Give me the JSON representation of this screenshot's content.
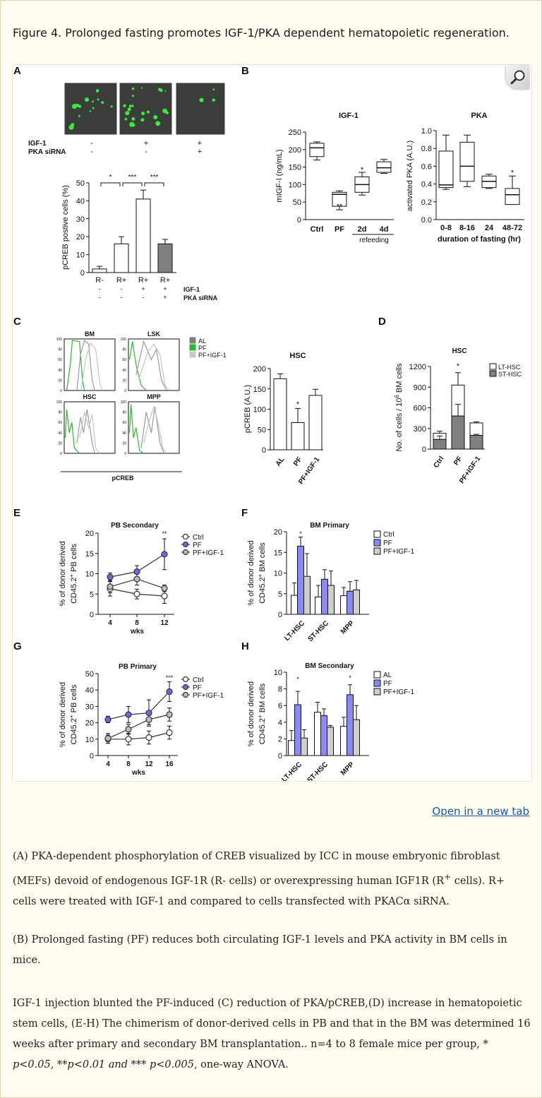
{
  "title": "Figure 4. Prolonged fasting promotes IGF-1/PKA dependent hematopoietic regeneration.",
  "open_link": "Open in a new tab",
  "zoom_icon": "magnifier-icon",
  "panel_letters": {
    "A": "A",
    "B": "B",
    "C": "C",
    "D": "D",
    "E": "E",
    "F": "F",
    "G": "G",
    "H": "H"
  },
  "panelA": {
    "micro_labels": {
      "igf1": "IGF-1",
      "pka": "PKA siRNA"
    },
    "micro_igf1": [
      "-",
      "+",
      "+"
    ],
    "micro_pka": [
      "-",
      "-",
      "+"
    ],
    "ylabel": "pCREB postive cells (%)",
    "yticks": [
      "0",
      "10",
      "20",
      "30",
      "40",
      "50"
    ],
    "categories": [
      "R-",
      "R+",
      "R+",
      "R+"
    ],
    "row_igf1": [
      "-",
      "-",
      "+",
      "+"
    ],
    "row_pka": [
      "-",
      "-",
      "-",
      "+"
    ],
    "row_label_igf1": "IGF-1",
    "row_label_pka": "PKA siRNA",
    "sig": [
      "*",
      "***",
      "***"
    ]
  },
  "panelB": {
    "igf_title": "IGF-1",
    "igf_ylabel": "mIGF-I (ng/mL)",
    "igf_yticks": [
      "0",
      "50",
      "100",
      "150",
      "200",
      "250"
    ],
    "igf_categories": [
      "Ctrl",
      "PF",
      "2d",
      "4d"
    ],
    "igf_sig": [
      "**",
      "*"
    ],
    "refeeding": "refeeding",
    "pka_title": "PKA",
    "pka_ylabel": "activated PKA (A.U.)",
    "pka_yticks": [
      "0.0",
      "0.2",
      "0.4",
      "0.6",
      "0.8",
      "1.0"
    ],
    "pka_categories": [
      "0-8",
      "8-16",
      "24",
      "48-72"
    ],
    "pka_sig": "*",
    "pka_xlabel": "duration of fasting (hr)"
  },
  "panelC": {
    "hist_titles": [
      "BM",
      "LSK",
      "HSC",
      "MPP"
    ],
    "hist_yticks": [
      "0",
      "20",
      "40",
      "60",
      "80",
      "100"
    ],
    "legend": [
      "AL",
      "PF",
      "PF+IGF-1"
    ],
    "hist_xlabel": "pCREB",
    "bar_title": "HSC",
    "bar_ylabel": "pCREB (A.U.)",
    "bar_yticks": [
      "0",
      "50",
      "100",
      "150",
      "200"
    ],
    "bar_categories": [
      "AL",
      "PF",
      "PF+IGF-1"
    ],
    "bar_sig": "*"
  },
  "panelD": {
    "title": "HSC",
    "ylabel_main": "No. of cells / 10",
    "ylabel_sup": "6",
    "ylabel_tail": " BM cells",
    "yticks": [
      "0",
      "300",
      "600",
      "900",
      "1200"
    ],
    "categories": [
      "Ctrl",
      "PF",
      "PF+IGF-1"
    ],
    "legend": [
      "LT-HSC",
      "ST-HSC"
    ],
    "sig": "*"
  },
  "panelE": {
    "title": "PB  Secondary",
    "ylabel1": "% of donor derived",
    "ylabel2": "CD45.2",
    "ylabel2_sup": "+",
    "ylabel2_tail": " PB cells",
    "yticks": [
      "0",
      "5",
      "10",
      "15",
      "20"
    ],
    "xticks": [
      "4",
      "8",
      "12"
    ],
    "xlabel": "wks",
    "legend": [
      "Ctrl",
      "PF",
      "PF+IGF-1"
    ],
    "sig": "**"
  },
  "panelF": {
    "title": "BM Primary",
    "ylabel1": "% of donor derived",
    "ylabel2": "CD45.2",
    "ylabel2_sup": "+",
    "ylabel2_tail": " BM cells",
    "yticks": [
      "0",
      "5",
      "10",
      "15",
      "20"
    ],
    "categories": [
      "LT-HSC",
      "ST-HSC",
      "MPP"
    ],
    "legend": [
      "Ctrl",
      "PF",
      "PF+IGF-1"
    ],
    "sig": "*"
  },
  "panelG": {
    "title": "PB  Primary",
    "ylabel1": "% of donor derived",
    "ylabel2": "CD45.2",
    "ylabel2_sup": "+",
    "ylabel2_tail": " PB cells",
    "yticks": [
      "0",
      "10",
      "20",
      "30",
      "40",
      "50"
    ],
    "xticks": [
      "4",
      "8",
      "12",
      "16"
    ],
    "xlabel": "wks",
    "legend": [
      "Ctrl",
      "PF",
      "PF+IGF-1"
    ],
    "sig": "***"
  },
  "panelH": {
    "title": "BM Secondary",
    "ylabel1": "% of donor derived",
    "ylabel2": "CD45.2",
    "ylabel2_sup": "+",
    "ylabel2_tail": " BM cells",
    "yticks": [
      "0",
      "2",
      "4",
      "6",
      "8",
      "10"
    ],
    "categories": [
      "LT-HSC",
      "ST-HSC",
      "MPP"
    ],
    "legend": [
      "AL",
      "PF",
      "PF+IGF-1"
    ],
    "sig": [
      "*",
      "*"
    ]
  },
  "caption": {
    "p1a": "(A) PKA-dependent phosphorylation of CREB visualized by ICC in mouse embryonic fibroblast (MEFs) devoid of endogenous IGF-1R (R- cells) or overexpressing human IGF1R (R",
    "p1sup": "+",
    "p1b": " cells). R+ cells were treated with IGF-1 and compared to cells transfected with PKACα siRNA.",
    "p2": "(B) Prolonged fasting (PF) reduces both circulating IGF-1 levels and PKA activity in BM cells in mice.",
    "p3a": "IGF-1 injection blunted the PF-induced (C) reduction of PKA/pCREB,(D) increase in hematopoietic stem cells, (E-H) The chimerism of donor-derived cells in PB and that in the BM was determined 16 weeks after primary and secondary BM transplantation.. n=4 to 8 female mice per group, ",
    "p3b": "* p<0.05, **p<0.01 and *** p<0.005",
    "p3c": ", one-way ANOVA."
  },
  "chart_data": [
    {
      "panel": "A",
      "type": "bar",
      "title": "",
      "ylabel": "pCREB postive cells (%)",
      "ylim": [
        0,
        50
      ],
      "categories": [
        "R-",
        "R+",
        "R+ +IGF-1",
        "R+ +IGF-1 +PKA siRNA"
      ],
      "values": [
        2,
        16,
        41,
        16
      ],
      "errors": [
        1.5,
        4,
        5,
        2.5
      ]
    },
    {
      "panel": "B",
      "type": "box",
      "title": "IGF-1",
      "ylabel": "mIGF-I (ng/mL)",
      "ylim": [
        0,
        250
      ],
      "categories": [
        "Ctrl",
        "PF",
        "2d",
        "4d"
      ],
      "boxes": [
        {
          "min": 170,
          "q1": 180,
          "median": 205,
          "q3": 218,
          "max": 222
        },
        {
          "min": 28,
          "q1": 38,
          "median": 72,
          "q3": 78,
          "max": 82
        },
        {
          "min": 70,
          "q1": 78,
          "median": 100,
          "q3": 122,
          "max": 135
        },
        {
          "min": 132,
          "q1": 135,
          "median": 148,
          "q3": 165,
          "max": 172
        }
      ]
    },
    {
      "panel": "B",
      "type": "box",
      "title": "PKA",
      "ylabel": "activated PKA (A.U.)",
      "xlabel": "duration of fasting (hr)",
      "ylim": [
        0,
        1
      ],
      "categories": [
        "0-8",
        "8-16",
        "24",
        "48-72"
      ],
      "boxes": [
        {
          "min": 0.34,
          "q1": 0.36,
          "median": 0.39,
          "q3": 0.77,
          "max": 0.95
        },
        {
          "min": 0.37,
          "q1": 0.43,
          "median": 0.6,
          "q3": 0.87,
          "max": 0.95
        },
        {
          "min": 0.35,
          "q1": 0.36,
          "median": 0.43,
          "q3": 0.49,
          "max": 0.51
        },
        {
          "min": 0.17,
          "q1": 0.17,
          "median": 0.28,
          "q3": 0.35,
          "max": 0.49
        }
      ]
    },
    {
      "panel": "C",
      "type": "bar",
      "title": "HSC",
      "ylabel": "pCREB (A.U.)",
      "ylim": [
        0,
        200
      ],
      "categories": [
        "AL",
        "PF",
        "PF+IGF-1"
      ],
      "values": [
        175,
        67,
        134
      ],
      "errors": [
        12,
        35,
        15
      ]
    },
    {
      "panel": "D",
      "type": "bar",
      "title": "HSC",
      "ylabel": "No. of cells / 10^6 BM cells",
      "ylim": [
        0,
        1200
      ],
      "categories": [
        "Ctrl",
        "PF",
        "PF+IGF-1"
      ],
      "series": [
        {
          "name": "ST-HSC",
          "values": [
            140,
            480,
            200
          ],
          "errors": [
            50,
            170,
            15
          ]
        },
        {
          "name": "LT-HSC",
          "values": [
            90,
            450,
            180
          ],
          "errors": [
            30,
            180,
            15
          ]
        }
      ]
    },
    {
      "panel": "E",
      "type": "line",
      "title": "PB  Secondary",
      "xlabel": "wks",
      "ylim": [
        0,
        20
      ],
      "x": [
        4,
        8,
        12
      ],
      "series": [
        {
          "name": "Ctrl",
          "values": [
            6.3,
            5.0,
            4.5
          ],
          "errors": [
            1.8,
            1.2,
            1.8
          ]
        },
        {
          "name": "PF",
          "values": [
            9.2,
            10.5,
            14.8
          ],
          "errors": [
            1.0,
            1.5,
            3.8
          ]
        },
        {
          "name": "PF+IGF-1",
          "values": [
            6.8,
            8.7,
            6.4
          ],
          "errors": [
            1.5,
            1.5,
            0.8
          ]
        }
      ]
    },
    {
      "panel": "F",
      "type": "bar",
      "title": "BM Primary",
      "ylim": [
        0,
        20
      ],
      "categories": [
        "LT-HSC",
        "ST-HSC",
        "MPP"
      ],
      "series": [
        {
          "name": "Ctrl",
          "values": [
            4.6,
            4.2,
            4.5
          ],
          "errors": [
            3.0,
            2.8,
            2.0
          ]
        },
        {
          "name": "PF",
          "values": [
            16.5,
            8.5,
            5.6
          ],
          "errors": [
            2.2,
            2.3,
            2.3
          ]
        },
        {
          "name": "PF+IGF-1",
          "values": [
            9.2,
            7.0,
            5.9
          ],
          "errors": [
            5.5,
            3.5,
            2.3
          ]
        }
      ]
    },
    {
      "panel": "G",
      "type": "line",
      "title": "PB  Primary",
      "xlabel": "wks",
      "ylim": [
        0,
        50
      ],
      "x": [
        4,
        8,
        12,
        16
      ],
      "series": [
        {
          "name": "Ctrl",
          "values": [
            10,
            10,
            11,
            14
          ],
          "errors": [
            2.5,
            3.5,
            4,
            4
          ]
        },
        {
          "name": "PF",
          "values": [
            22,
            25,
            26,
            39
          ],
          "errors": [
            2,
            5,
            8,
            6
          ]
        },
        {
          "name": "PF+IGF-1",
          "values": [
            10.5,
            16,
            22,
            25
          ],
          "errors": [
            3,
            3,
            3,
            4
          ]
        }
      ]
    },
    {
      "panel": "H",
      "type": "bar",
      "title": "BM Secondary",
      "ylim": [
        0,
        10
      ],
      "categories": [
        "LT-HSC",
        "ST-HSC",
        "MPP"
      ],
      "series": [
        {
          "name": "AL",
          "values": [
            1.8,
            5.2,
            3.5
          ],
          "errors": [
            1.2,
            1.2,
            1.1
          ]
        },
        {
          "name": "PF",
          "values": [
            6.1,
            4.8,
            7.3
          ],
          "errors": [
            1.6,
            0.8,
            1.2
          ]
        },
        {
          "name": "PF+IGF-1",
          "values": [
            2.1,
            3.4,
            4.3
          ],
          "errors": [
            1.0,
            0.2,
            1.7
          ]
        }
      ]
    }
  ]
}
